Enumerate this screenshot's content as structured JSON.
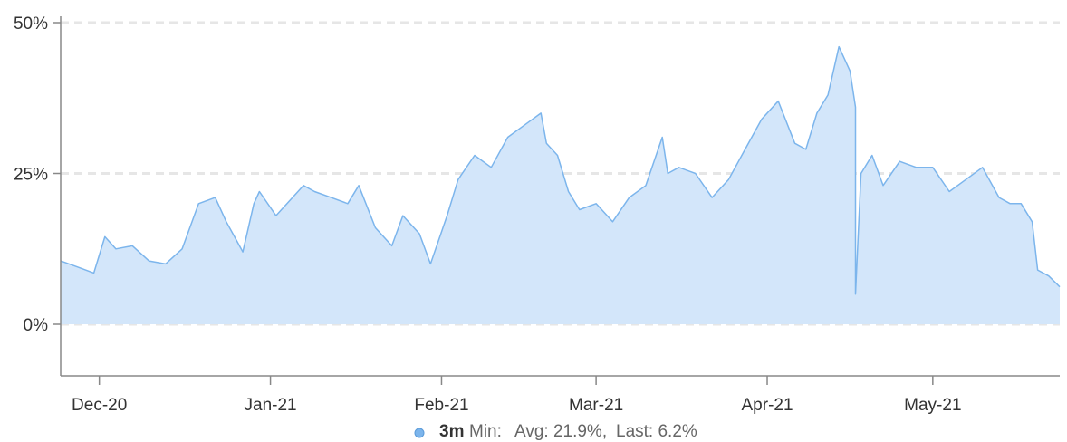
{
  "chart_data": {
    "type": "area",
    "title": "",
    "xlabel": "",
    "ylabel": "",
    "ylim": [
      -8,
      50
    ],
    "y_ticks": [
      {
        "value": 0,
        "label": "0%"
      },
      {
        "value": 25,
        "label": "25%"
      },
      {
        "value": 50,
        "label": "50%"
      }
    ],
    "x_ticks": [
      {
        "date": "2020-12-01",
        "label": "Dec-20"
      },
      {
        "date": "2021-01-01",
        "label": "Jan-21"
      },
      {
        "date": "2021-02-01",
        "label": "Feb-21"
      },
      {
        "date": "2021-03-01",
        "label": "Mar-21"
      },
      {
        "date": "2021-04-01",
        "label": "Apr-21"
      },
      {
        "date": "2021-05-01",
        "label": "May-21"
      }
    ],
    "xlim": [
      "2020-11-24",
      "2021-05-24"
    ],
    "grid": true,
    "series": [
      {
        "name": "3m",
        "color": "#7cb5ec",
        "fill": "#d3e6fa",
        "x": [
          "2020-11-24",
          "2020-11-27",
          "2020-11-30",
          "2020-12-02",
          "2020-12-04",
          "2020-12-07",
          "2020-12-10",
          "2020-12-13",
          "2020-12-16",
          "2020-12-19",
          "2020-12-22",
          "2020-12-24",
          "2020-12-27",
          "2020-12-29",
          "2020-12-30",
          "2021-01-02",
          "2021-01-04",
          "2021-01-07",
          "2021-01-09",
          "2021-01-12",
          "2021-01-15",
          "2021-01-17",
          "2021-01-20",
          "2021-01-23",
          "2021-01-25",
          "2021-01-28",
          "2021-01-30",
          "2021-02-02",
          "2021-02-04",
          "2021-02-07",
          "2021-02-10",
          "2021-02-13",
          "2021-02-16",
          "2021-02-19",
          "2021-02-20",
          "2021-02-22",
          "2021-02-24",
          "2021-02-26",
          "2021-03-01",
          "2021-03-04",
          "2021-03-07",
          "2021-03-10",
          "2021-03-13",
          "2021-03-14",
          "2021-03-16",
          "2021-03-19",
          "2021-03-22",
          "2021-03-25",
          "2021-03-28",
          "2021-03-31",
          "2021-04-03",
          "2021-04-06",
          "2021-04-08",
          "2021-04-10",
          "2021-04-12",
          "2021-04-14",
          "2021-04-16",
          "2021-04-17",
          "2021-04-17",
          "2021-04-18",
          "2021-04-20",
          "2021-04-22",
          "2021-04-25",
          "2021-04-28",
          "2021-05-01",
          "2021-05-04",
          "2021-05-07",
          "2021-05-10",
          "2021-05-13",
          "2021-05-15",
          "2021-05-17",
          "2021-05-19",
          "2021-05-20",
          "2021-05-22",
          "2021-05-24"
        ],
        "values": [
          10.5,
          9.5,
          8.5,
          14.5,
          12.5,
          13,
          10.5,
          10,
          12.5,
          20,
          21,
          17,
          12,
          20,
          22,
          18,
          20,
          23,
          22,
          21,
          20,
          23,
          16,
          13,
          18,
          15,
          10,
          18,
          24,
          28,
          26,
          31,
          33,
          35,
          30,
          28,
          22,
          19,
          20,
          17,
          21,
          23,
          31,
          25,
          26,
          25,
          21,
          24,
          29,
          34,
          37,
          30,
          29,
          35,
          38,
          46,
          42,
          36,
          5,
          25,
          28,
          23,
          27,
          26,
          26,
          22,
          24,
          26,
          21,
          20,
          20,
          17,
          9,
          8,
          6.2
        ]
      }
    ],
    "legend": {
      "position": "bottom-center",
      "name": "3m",
      "min_label": "Min:",
      "avg_label": "Avg: 21.9%,",
      "last_label": "Last: 6.2%"
    }
  }
}
